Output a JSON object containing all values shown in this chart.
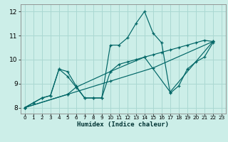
{
  "xlabel": "Humidex (Indice chaleur)",
  "background_color": "#cceee8",
  "grid_color": "#aad8d2",
  "line_color": "#006666",
  "marker": "+",
  "xlim": [
    -0.5,
    23.5
  ],
  "ylim": [
    7.75,
    12.3
  ],
  "yticks": [
    8,
    9,
    10,
    11,
    12
  ],
  "xticks": [
    0,
    1,
    2,
    3,
    4,
    5,
    6,
    7,
    8,
    9,
    10,
    11,
    12,
    13,
    14,
    15,
    16,
    17,
    18,
    19,
    20,
    21,
    22,
    23
  ],
  "lines": [
    [
      [
        0,
        8.0
      ],
      [
        1,
        8.2
      ],
      [
        2,
        8.4
      ],
      [
        3,
        8.5
      ],
      [
        4,
        9.6
      ],
      [
        5,
        9.5
      ],
      [
        6,
        8.9
      ],
      [
        7,
        8.4
      ],
      [
        8,
        8.4
      ],
      [
        9,
        8.4
      ],
      [
        10,
        10.6
      ],
      [
        11,
        10.6
      ],
      [
        12,
        10.9
      ],
      [
        13,
        11.5
      ],
      [
        14,
        12.0
      ],
      [
        15,
        11.1
      ],
      [
        16,
        10.7
      ],
      [
        17,
        8.6
      ],
      [
        18,
        8.9
      ],
      [
        19,
        9.6
      ],
      [
        20,
        9.9
      ],
      [
        21,
        10.1
      ],
      [
        22,
        10.7
      ]
    ],
    [
      [
        0,
        8.0
      ],
      [
        1,
        8.2
      ],
      [
        2,
        8.4
      ],
      [
        3,
        8.5
      ],
      [
        4,
        9.6
      ],
      [
        5,
        9.3
      ],
      [
        6,
        8.85
      ],
      [
        7,
        8.4
      ],
      [
        8,
        8.4
      ],
      [
        9,
        8.4
      ],
      [
        10,
        9.5
      ],
      [
        11,
        9.8
      ],
      [
        12,
        9.9
      ],
      [
        13,
        10.0
      ],
      [
        14,
        10.1
      ],
      [
        15,
        10.2
      ],
      [
        16,
        10.3
      ],
      [
        17,
        10.4
      ],
      [
        18,
        10.5
      ],
      [
        19,
        10.6
      ],
      [
        20,
        10.7
      ],
      [
        21,
        10.8
      ],
      [
        22,
        10.75
      ]
    ],
    [
      [
        0,
        8.0
      ],
      [
        5,
        8.55
      ],
      [
        10,
        9.1
      ],
      [
        15,
        9.65
      ],
      [
        22,
        10.75
      ]
    ],
    [
      [
        0,
        8.0
      ],
      [
        5,
        8.55
      ],
      [
        6,
        8.85
      ],
      [
        10,
        9.5
      ],
      [
        14,
        10.1
      ],
      [
        17,
        8.65
      ],
      [
        22,
        10.75
      ]
    ]
  ]
}
